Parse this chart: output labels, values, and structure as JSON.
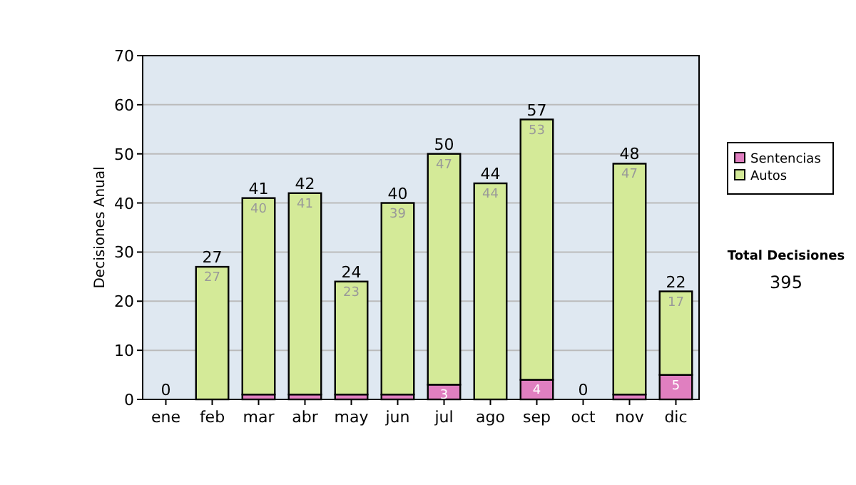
{
  "chart_data": {
    "type": "bar",
    "stacked": true,
    "ylabel": "Decisiones Anual",
    "categories": [
      "ene",
      "feb",
      "mar",
      "abr",
      "may",
      "jun",
      "jul",
      "ago",
      "sep",
      "oct",
      "nov",
      "dic"
    ],
    "series": [
      {
        "name": "Sentencias",
        "color": "#e07fc0",
        "values": [
          0,
          0,
          1,
          1,
          1,
          1,
          3,
          0,
          4,
          0,
          1,
          5
        ],
        "value_labels": [
          null,
          null,
          null,
          null,
          null,
          null,
          "3",
          null,
          "4",
          null,
          null,
          "5"
        ]
      },
      {
        "name": "Autos",
        "color": "#d4ea98",
        "values": [
          0,
          27,
          40,
          41,
          23,
          39,
          47,
          44,
          53,
          0,
          47,
          17
        ],
        "value_labels": [
          null,
          "27",
          "40",
          "41",
          "23",
          "39",
          "47",
          "44",
          "53",
          null,
          "47",
          "17"
        ]
      }
    ],
    "totals": [
      "0",
      "27",
      "41",
      "42",
      "24",
      "40",
      "50",
      "44",
      "57",
      "0",
      "48",
      "22"
    ],
    "ylim": [
      0,
      70
    ],
    "yticks": [
      0,
      10,
      20,
      30,
      40,
      50,
      60,
      70
    ],
    "grid": "y",
    "legend": "right",
    "annotations": [
      "Total Decisiones",
      "395"
    ]
  }
}
